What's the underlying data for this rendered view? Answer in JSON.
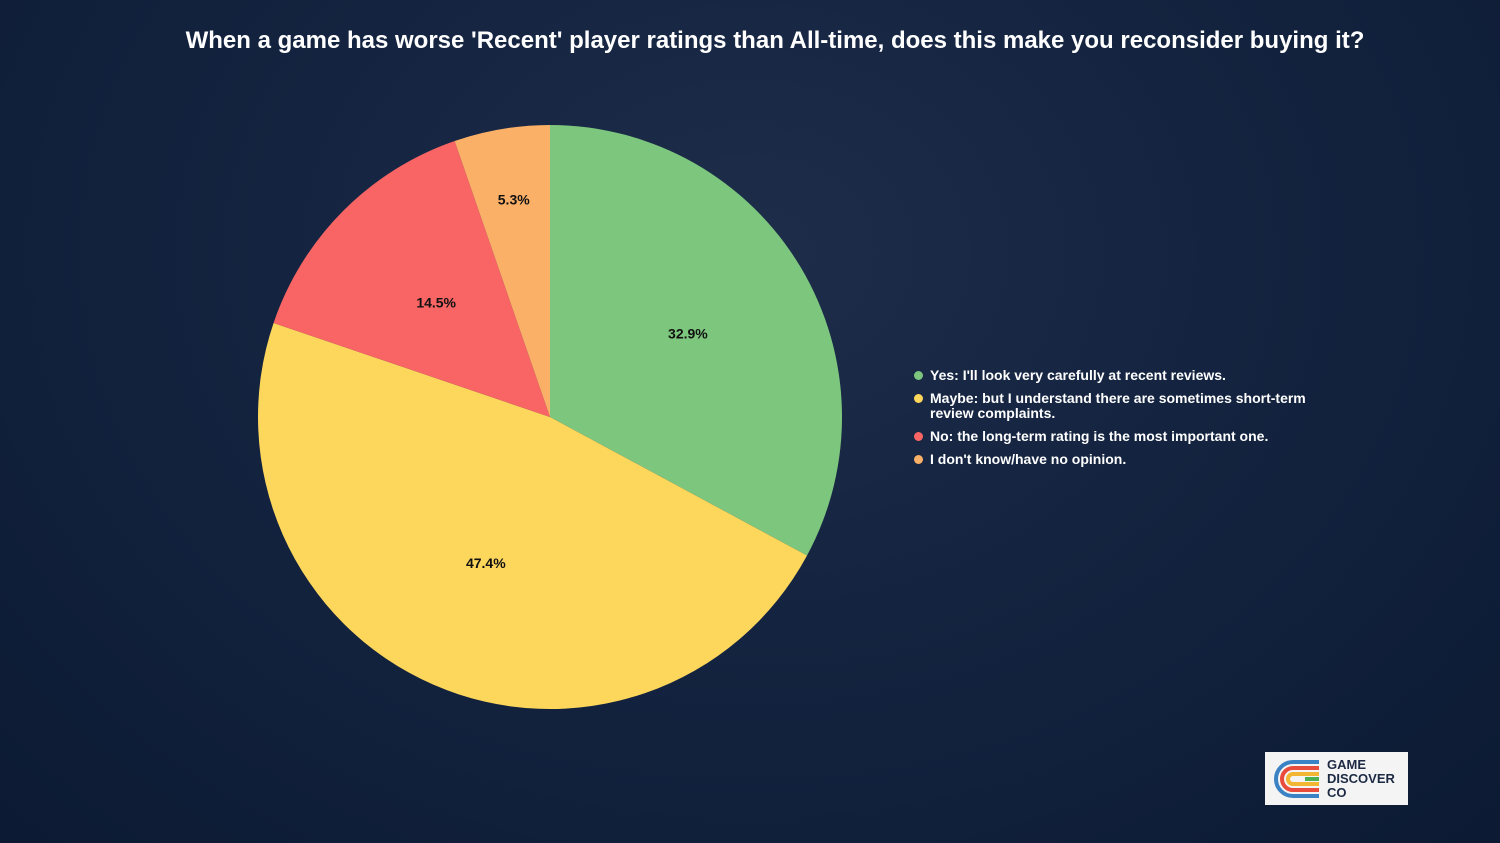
{
  "chart_data": {
    "type": "pie",
    "title": "When a game has worse 'Recent' player ratings than All-time, does this make you reconsider buying it?",
    "categories": [
      "Yes: I'll look very carefully at recent reviews.",
      "Maybe: but I understand there are sometimes short-term review complaints.",
      "No: the long-term rating is the most important one.",
      "I don't know/have no opinion."
    ],
    "values": [
      32.9,
      47.4,
      14.5,
      5.3
    ],
    "value_labels": [
      "32.9%",
      "47.4%",
      "14.5%",
      "5.3%"
    ],
    "colors": [
      "#7dc67d",
      "#fdd65c",
      "#f96565",
      "#fbb068"
    ],
    "legend": "right"
  },
  "logo": {
    "lines": [
      "GAME",
      "DISCOVER",
      "CO"
    ]
  }
}
